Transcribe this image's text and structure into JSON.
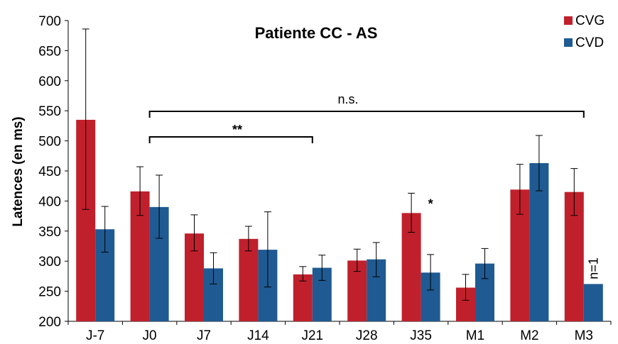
{
  "chart_data": {
    "type": "bar",
    "title": "Patiente CC - AS",
    "xlabel": "",
    "ylabel": "Latences (en ms)",
    "ylim": [
      200,
      700
    ],
    "yticks": [
      200,
      250,
      300,
      350,
      400,
      450,
      500,
      550,
      600,
      650,
      700
    ],
    "categories": [
      "J-7",
      "J0",
      "J7",
      "J14",
      "J21",
      "J28",
      "J35",
      "M1",
      "M2",
      "M3"
    ],
    "series": [
      {
        "name": "CVG",
        "color": "#c0202c",
        "values": [
          535,
          416,
          346,
          337,
          278,
          301,
          380,
          256,
          419,
          415
        ],
        "error_low": [
          386,
          376,
          317,
          317,
          267,
          283,
          348,
          235,
          378,
          376
        ],
        "error_high": [
          686,
          457,
          377,
          358,
          291,
          320,
          413,
          278,
          461,
          454
        ]
      },
      {
        "name": "CVD",
        "color": "#1f5a92",
        "values": [
          353,
          390,
          288,
          319,
          289,
          303,
          281,
          296,
          463,
          262
        ],
        "error_low": [
          315,
          338,
          262,
          257,
          268,
          274,
          252,
          271,
          417,
          262
        ],
        "error_high": [
          391,
          443,
          314,
          382,
          310,
          331,
          311,
          321,
          509,
          262
        ]
      }
    ],
    "legend": {
      "position": "top-right",
      "entries": [
        "CVG",
        "CVD"
      ]
    },
    "annotations": {
      "bracket_ns": {
        "from": "J0",
        "to": "M3",
        "label": "n.s."
      },
      "bracket_double": {
        "from": "J0",
        "to": "J21",
        "label": "**"
      },
      "star_j35": {
        "category": "J35",
        "label": "*"
      },
      "m3_note": {
        "category": "M3",
        "label": "n=1"
      }
    },
    "grid": false
  }
}
